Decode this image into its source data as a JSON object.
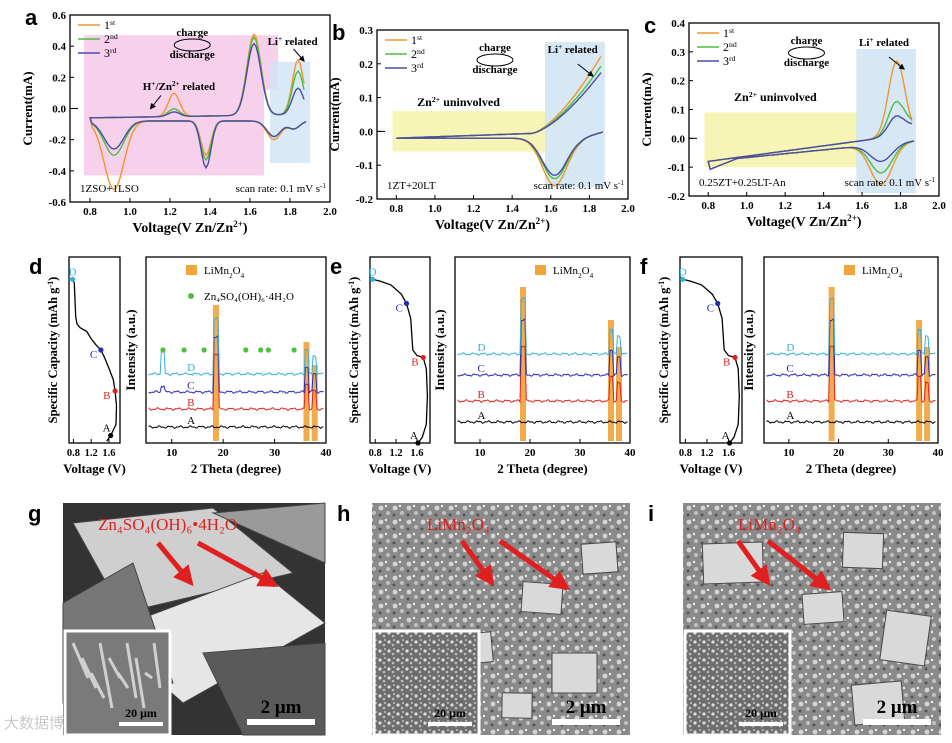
{
  "panel_letters": [
    "a",
    "b",
    "c",
    "d",
    "e",
    "f",
    "g",
    "h",
    "i"
  ],
  "cv_common": {
    "ylabel": "Current(mA)",
    "xlabel": "Voltage(V Zn/Zn",
    "xlabel_sup": "2+",
    "xlabel_close": ")",
    "legend": [
      {
        "base": "1",
        "sup": "st",
        "color": "#f0962e"
      },
      {
        "base": "2",
        "sup": "nd",
        "color": "#4cbf3c"
      },
      {
        "base": "3",
        "sup": "rd",
        "color": "#4c4ca8"
      }
    ],
    "charge": "charge",
    "discharge": "discharge",
    "li_label": "Li",
    "li_sup": "+",
    "li_tail": " related",
    "scan_rate": "scan rate: 0.1 mV s",
    "scan_sup": "-1",
    "xticks": [
      "0.8",
      "1.0",
      "1.2",
      "1.4",
      "1.6",
      "1.8",
      "2.0"
    ]
  },
  "chart_data": [
    {
      "panel": "a",
      "type": "line",
      "sample": "1ZSO+1LSO",
      "title": "",
      "xlabel": "Voltage (V Zn/Zn2+)",
      "ylabel": "Current(mA)",
      "xlim": [
        0.7,
        2.0
      ],
      "ylim": [
        -0.6,
        0.6
      ],
      "yticks": [
        "0.6",
        "0.4",
        "0.2",
        "0.0",
        "-0.2",
        "-0.4",
        "-0.6"
      ],
      "note": "H+/Zn2+ related",
      "note_base": "H",
      "note_sup1": "+",
      "note_mid": "/Zn",
      "note_sup2": "2+",
      "note_tail": " related",
      "series": [
        {
          "name": "1st",
          "curve": "a1"
        },
        {
          "name": "2nd",
          "curve": "a2"
        },
        {
          "name": "3rd",
          "curve": "a3"
        }
      ]
    },
    {
      "panel": "b",
      "type": "line",
      "sample": "1ZT+20LT",
      "xlim": [
        0.7,
        2.0
      ],
      "ylim": [
        -0.2,
        0.3
      ],
      "yticks": [
        "0.3",
        "0.2",
        "0.1",
        "0.0",
        "-0.1",
        "-0.2"
      ],
      "note": "Zn2+ uninvolved",
      "note_base": "Zn",
      "note_sup": "2+",
      "note_tail": " uninvolved",
      "series": [
        {
          "name": "1st"
        },
        {
          "name": "2nd"
        },
        {
          "name": "3rd"
        }
      ]
    },
    {
      "panel": "c",
      "type": "line",
      "sample": "0.25ZT+0.25LT-An",
      "xlim": [
        0.7,
        2.0
      ],
      "ylim": [
        -0.2,
        0.4
      ],
      "yticks": [
        "0.4",
        "0.3",
        "0.2",
        "0.1",
        "0.0",
        "-0.1",
        "-0.2"
      ],
      "note": "Zn2+ uninvolved",
      "note_base": "Zn",
      "note_sup": "2+",
      "note_tail": " uninvolved",
      "series": [
        {
          "name": "1st"
        },
        {
          "name": "2nd"
        },
        {
          "name": "3rd"
        }
      ]
    },
    {
      "panel": "d",
      "type": "line",
      "xrd_legend1": "LiMn2O4",
      "xrd_legend2": "Zn4SO4(OH)6·4H2O",
      "charge_curve_xlabel": "Voltage (V)",
      "charge_curve_ylabel": "Specific Capacity (mAh g-1)",
      "xrd_xlabel": "2 Theta (degree)",
      "xrd_ylabel": "Intensity (a.u.)",
      "points": [
        "A",
        "B",
        "C",
        "D"
      ],
      "xticks_v": [
        "0.8",
        "1.2",
        "1.6"
      ],
      "xticks_t": [
        "10",
        "20",
        "30",
        "40"
      ]
    },
    {
      "panel": "e",
      "type": "line",
      "xrd_legend1": "LiMn2O4",
      "points": [
        "A",
        "B",
        "C",
        "D"
      ]
    },
    {
      "panel": "f",
      "type": "line",
      "xrd_legend1": "LiMn2O4",
      "points": [
        "A",
        "B",
        "C",
        "D"
      ]
    }
  ],
  "xrd": {
    "xlabel": "2 Theta (degree)",
    "ylabel": "Intensity (a.u.)",
    "limn_base": "LiMn",
    "limn_sub1": "2",
    "limn_mid": "O",
    "limn_sub2": "4",
    "zn_legend": "Zn₄SO₄(OH)₆·4H₂O",
    "xticks": [
      "10",
      "20",
      "30",
      "40"
    ]
  },
  "vcurve": {
    "xlabel": "Voltage (V)",
    "ylabel": "Specific Capacity (mAh g",
    "ylabel_sup": "-1",
    "ylabel_close": ")",
    "xticks": [
      "0.8",
      "1.2",
      "1.6"
    ]
  },
  "sem": {
    "g_label": "Zn₄SO₄(OH)₆•4H₂O",
    "h_label": "LiMn₂O₄",
    "i_label": "LiMn₂O₄",
    "scale_big": "2 μm",
    "scale_small": "20 μm"
  },
  "watermark": "大数据博"
}
